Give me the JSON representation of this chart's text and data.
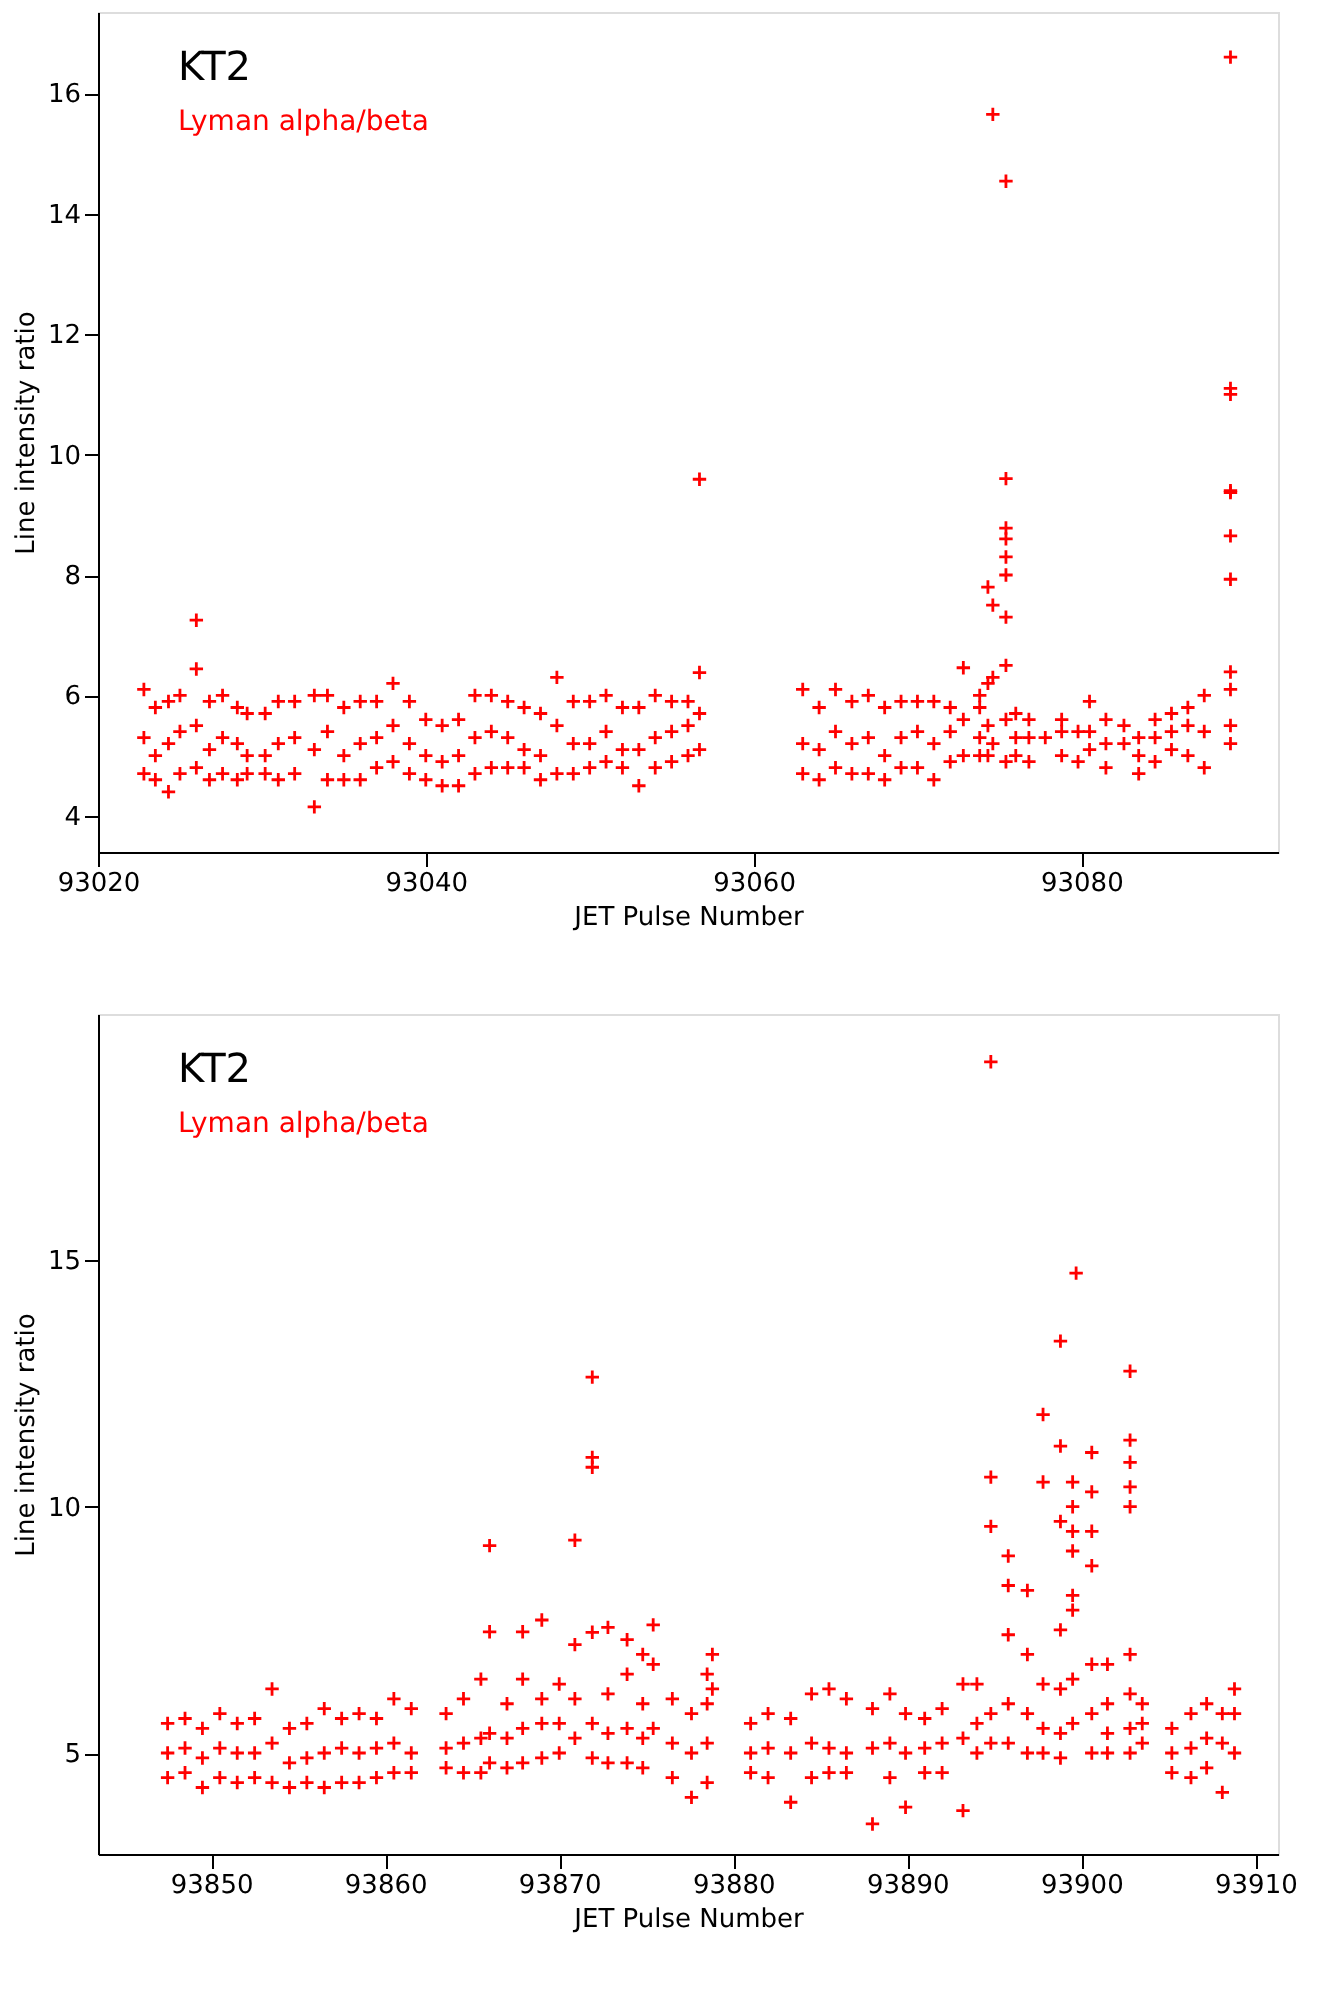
{
  "chart_data": [
    {
      "type": "scatter",
      "title": "KT2",
      "xlabel": "JET Pulse Number",
      "ylabel": "Line intensity ratio",
      "xlim": [
        93020,
        93092
      ],
      "ylim": [
        3.4,
        17.35
      ],
      "xticks": [
        93020,
        93040,
        93060,
        93080
      ],
      "yticks": [
        4,
        6,
        8,
        10,
        12,
        14,
        16
      ],
      "grid": false,
      "marker": "cross",
      "series": [
        {
          "name": "Lyman alpha/beta",
          "color": "#ff0000",
          "x": [
            93022.8,
            93022.8,
            93022.8,
            93023.5,
            93023.5,
            93023.5,
            93024.3,
            93024.3,
            93024.3,
            93025.0,
            93025.0,
            93025.0,
            93026.0,
            93026.0,
            93026.0,
            93026.0,
            93026.8,
            93026.8,
            93026.8,
            93027.6,
            93027.6,
            93027.6,
            93028.5,
            93028.5,
            93028.5,
            93029.1,
            93029.1,
            93029.1,
            93030.2,
            93030.2,
            93030.2,
            93031.0,
            93031.0,
            93031.0,
            93032.0,
            93032.0,
            93032.0,
            93033.2,
            93033.2,
            93033.2,
            93034.0,
            93034.0,
            93034.0,
            93035.0,
            93035.0,
            93035.0,
            93036.0,
            93036.0,
            93036.0,
            93037.0,
            93037.0,
            93037.0,
            93038.0,
            93038.0,
            93038.0,
            93039.0,
            93039.0,
            93039.0,
            93040.0,
            93040.0,
            93040.0,
            93041.0,
            93041.0,
            93041.0,
            93042.0,
            93042.0,
            93042.0,
            93043.0,
            93043.0,
            93043.0,
            93044.0,
            93044.0,
            93044.0,
            93045.0,
            93045.0,
            93045.0,
            93046.0,
            93046.0,
            93046.0,
            93047.0,
            93047.0,
            93047.0,
            93048.0,
            93048.0,
            93048.0,
            93049.0,
            93049.0,
            93049.0,
            93050.0,
            93050.0,
            93050.0,
            93051.0,
            93051.0,
            93051.0,
            93052.0,
            93052.0,
            93052.0,
            93053.0,
            93053.0,
            93053.0,
            93054.0,
            93054.0,
            93054.0,
            93055.0,
            93055.0,
            93055.0,
            93056.0,
            93056.0,
            93056.0,
            93056.7,
            93056.7,
            93056.7,
            93056.7,
            93063.0,
            93063.0,
            93063.0,
            93064.0,
            93064.0,
            93064.0,
            93065.0,
            93065.0,
            93065.0,
            93066.0,
            93066.0,
            93066.0,
            93067.0,
            93067.0,
            93067.0,
            93068.0,
            93068.0,
            93068.0,
            93069.0,
            93069.0,
            93069.0,
            93070.0,
            93070.0,
            93070.0,
            93071.0,
            93071.0,
            93071.0,
            93072.0,
            93072.0,
            93072.0,
            93072.8,
            93072.8,
            93072.8,
            93073.8,
            93073.8,
            93073.8,
            93073.8,
            93074.3,
            93074.3,
            93074.3,
            93074.3,
            93074.6,
            93074.6,
            93074.6,
            93074.6,
            93075.4,
            93075.4,
            93075.4,
            93075.4,
            93075.4,
            93075.4,
            93075.4,
            93075.4,
            93075.4,
            93075.4,
            93076.0,
            93076.0,
            93076.0,
            93076.8,
            93076.8,
            93076.8,
            93077.8,
            93078.8,
            93078.8,
            93078.8,
            93079.8,
            93079.8,
            93080.5,
            93080.5,
            93080.5,
            93081.5,
            93081.5,
            93081.5,
            93082.6,
            93082.6,
            93083.5,
            93083.5,
            93083.5,
            93084.5,
            93084.5,
            93084.5,
            93085.5,
            93085.5,
            93085.5,
            93086.5,
            93086.5,
            93086.5,
            93087.5,
            93087.5,
            93087.5,
            93089.1,
            93089.1,
            93089.1,
            93089.1,
            93089.1,
            93089.1,
            93089.1,
            93089.1,
            93089.1,
            93089.1,
            93089.1
          ],
          "values": [
            6.1,
            5.3,
            4.7,
            5.8,
            5.0,
            4.6,
            5.9,
            5.2,
            4.4,
            6.0,
            5.4,
            4.7,
            7.25,
            6.44,
            5.5,
            4.8,
            5.9,
            5.1,
            4.6,
            6.0,
            5.3,
            4.7,
            5.8,
            5.2,
            4.6,
            5.7,
            5.0,
            4.7,
            5.7,
            5.0,
            4.7,
            5.9,
            5.2,
            4.6,
            5.9,
            5.3,
            4.7,
            6.0,
            5.1,
            4.15,
            6.0,
            5.4,
            4.6,
            5.8,
            5.0,
            4.6,
            5.9,
            5.2,
            4.6,
            5.9,
            5.3,
            4.8,
            6.2,
            5.5,
            4.9,
            5.9,
            5.2,
            4.7,
            5.6,
            5.0,
            4.6,
            5.5,
            4.9,
            4.5,
            5.6,
            5.0,
            4.5,
            6.0,
            5.3,
            4.7,
            6.0,
            5.4,
            4.8,
            5.9,
            5.3,
            4.8,
            5.8,
            5.1,
            4.8,
            5.7,
            5.0,
            4.6,
            6.3,
            5.5,
            4.7,
            5.9,
            5.2,
            4.7,
            5.9,
            5.2,
            4.8,
            6.0,
            5.4,
            4.9,
            5.8,
            5.1,
            4.8,
            5.8,
            5.1,
            4.5,
            6.0,
            5.3,
            4.8,
            5.9,
            5.4,
            4.9,
            5.9,
            5.5,
            5.0,
            9.59,
            6.38,
            5.7,
            5.1,
            6.1,
            5.2,
            4.7,
            5.8,
            5.1,
            4.6,
            6.1,
            5.4,
            4.8,
            5.9,
            5.2,
            4.7,
            6.0,
            5.3,
            4.7,
            5.8,
            5.0,
            4.6,
            5.9,
            5.3,
            4.8,
            5.9,
            5.4,
            4.8,
            5.9,
            5.2,
            4.6,
            5.8,
            5.4,
            4.9,
            6.46,
            5.6,
            5.0,
            6.0,
            5.8,
            5.3,
            5.0,
            7.8,
            6.2,
            5.5,
            5.0,
            15.65,
            7.5,
            6.3,
            5.2,
            14.54,
            9.6,
            8.78,
            8.6,
            8.3,
            8.0,
            7.3,
            6.5,
            5.6,
            4.9,
            5.7,
            5.3,
            5.0,
            5.6,
            5.3,
            4.9,
            5.3,
            5.6,
            5.4,
            5.0,
            5.4,
            4.9,
            5.9,
            5.4,
            5.1,
            5.6,
            5.2,
            4.8,
            5.5,
            5.2,
            5.3,
            5.0,
            4.7,
            5.6,
            5.3,
            4.9,
            5.7,
            5.4,
            5.1,
            5.8,
            5.5,
            5.0,
            6.0,
            5.4,
            4.8,
            16.6,
            11.1,
            11.0,
            9.4,
            9.37,
            8.65,
            7.93,
            6.39,
            6.1,
            5.5,
            5.2
          ]
        }
      ]
    },
    {
      "type": "scatter",
      "title": "KT2",
      "xlabel": "JET Pulse Number",
      "ylabel": "Line intensity ratio",
      "xlim": [
        93843.5,
        93911.3
      ],
      "ylim": [
        2.95,
        20
      ],
      "xticks": [
        93850,
        93860,
        93870,
        93880,
        93890,
        93900,
        93910
      ],
      "yticks": [
        5,
        10,
        15
      ],
      "grid": false,
      "marker": "cross",
      "series": [
        {
          "name": "Lyman alpha/beta",
          "color": "#ff0000",
          "x": [
            93847.5,
            93847.5,
            93847.5,
            93848.5,
            93848.5,
            93848.5,
            93849.5,
            93849.5,
            93849.5,
            93850.5,
            93850.5,
            93850.5,
            93851.5,
            93851.5,
            93851.5,
            93852.5,
            93852.5,
            93852.5,
            93853.5,
            93853.5,
            93853.5,
            93854.5,
            93854.5,
            93854.5,
            93855.5,
            93855.5,
            93855.5,
            93856.5,
            93856.5,
            93856.5,
            93857.5,
            93857.5,
            93857.5,
            93858.5,
            93858.5,
            93858.5,
            93859.5,
            93859.5,
            93859.5,
            93860.5,
            93860.5,
            93860.5,
            93861.5,
            93861.5,
            93861.5,
            93863.5,
            93863.5,
            93863.5,
            93864.5,
            93864.5,
            93864.5,
            93865.5,
            93865.5,
            93865.5,
            93866.0,
            93866.0,
            93866.0,
            93866.0,
            93867.0,
            93867.0,
            93867.0,
            93867.9,
            93867.9,
            93867.9,
            93867.9,
            93869.0,
            93869.0,
            93869.0,
            93869.0,
            93870.0,
            93870.0,
            93870.0,
            93870.9,
            93870.9,
            93870.9,
            93870.9,
            93871.9,
            93871.9,
            93871.9,
            93871.9,
            93871.9,
            93871.9,
            93872.8,
            93872.8,
            93872.8,
            93872.8,
            93873.9,
            93873.9,
            93873.9,
            93873.9,
            93874.8,
            93874.8,
            93874.8,
            93874.8,
            93875.4,
            93875.4,
            93875.4,
            93876.5,
            93876.5,
            93876.5,
            93877.6,
            93877.6,
            93877.6,
            93878.5,
            93878.5,
            93878.5,
            93878.5,
            93878.8,
            93878.8,
            93881.0,
            93881.0,
            93881.0,
            93882.0,
            93882.0,
            93882.0,
            93883.3,
            93883.3,
            93883.3,
            93884.5,
            93884.5,
            93884.5,
            93885.5,
            93885.5,
            93885.5,
            93886.5,
            93886.5,
            93886.5,
            93888.0,
            93888.0,
            93888.0,
            93889.0,
            93889.0,
            93889.0,
            93889.9,
            93889.9,
            93889.9,
            93891.0,
            93891.0,
            93891.0,
            93892.0,
            93892.0,
            93892.0,
            93893.2,
            93893.2,
            93893.2,
            93894.0,
            93894.0,
            93894.0,
            93894.8,
            93894.8,
            93894.8,
            93894.8,
            93894.8,
            93895.8,
            93895.8,
            93895.8,
            93895.8,
            93895.8,
            93896.9,
            93896.9,
            93896.9,
            93896.9,
            93897.8,
            93897.8,
            93897.8,
            93897.8,
            93897.8,
            93898.8,
            93898.8,
            93898.8,
            93898.8,
            93898.8,
            93898.8,
            93898.8,
            93899.5,
            93899.5,
            93899.5,
            93899.5,
            93899.5,
            93899.5,
            93899.5,
            93899.5,
            93899.7,
            93900.6,
            93900.6,
            93900.6,
            93900.6,
            93900.6,
            93900.6,
            93900.6,
            93901.5,
            93901.5,
            93901.5,
            93901.5,
            93902.8,
            93902.8,
            93902.8,
            93902.8,
            93902.8,
            93902.8,
            93902.8,
            93902.8,
            93902.8,
            93903.5,
            93903.5,
            93903.5,
            93905.2,
            93905.2,
            93905.2,
            93906.3,
            93906.3,
            93906.3,
            93907.2,
            93907.2,
            93907.2,
            93908.1,
            93908.1,
            93908.1,
            93908.8,
            93908.8,
            93908.8
          ],
          "values": [
            5.6,
            5.0,
            4.5,
            5.7,
            5.1,
            4.6,
            5.5,
            4.9,
            4.3,
            5.8,
            5.1,
            4.5,
            5.6,
            5.0,
            4.4,
            5.7,
            5.0,
            4.5,
            6.3,
            5.2,
            4.4,
            5.5,
            4.8,
            4.3,
            5.6,
            4.9,
            4.4,
            5.9,
            5.0,
            4.3,
            5.7,
            5.1,
            4.4,
            5.8,
            5.0,
            4.4,
            5.7,
            5.1,
            4.5,
            6.1,
            5.2,
            4.6,
            5.9,
            5.0,
            4.6,
            5.8,
            5.1,
            4.7,
            6.1,
            5.2,
            4.6,
            6.5,
            5.3,
            4.6,
            9.21,
            7.46,
            5.4,
            4.8,
            6.0,
            5.3,
            4.7,
            7.46,
            6.5,
            5.5,
            4.8,
            7.7,
            6.1,
            5.6,
            4.9,
            6.4,
            5.6,
            5.0,
            9.32,
            7.2,
            6.1,
            5.3,
            12.63,
            11.0,
            10.8,
            7.45,
            5.6,
            4.9,
            7.55,
            6.2,
            5.4,
            4.8,
            7.3,
            6.6,
            5.5,
            4.8,
            7.0,
            6.0,
            5.3,
            4.7,
            7.6,
            6.8,
            5.5,
            6.1,
            5.2,
            4.5,
            5.8,
            5.0,
            4.1,
            6.6,
            6.0,
            5.2,
            4.4,
            7.0,
            6.3,
            5.6,
            5.0,
            4.6,
            5.8,
            5.1,
            4.5,
            5.7,
            5.0,
            4.0,
            6.2,
            5.2,
            4.5,
            6.3,
            5.1,
            4.6,
            6.1,
            5.0,
            4.6,
            5.9,
            5.1,
            3.56,
            6.2,
            5.2,
            4.5,
            5.8,
            5.0,
            3.9,
            5.7,
            5.1,
            4.6,
            5.9,
            5.2,
            4.6,
            6.4,
            5.3,
            3.83,
            6.4,
            5.6,
            5.0,
            19.03,
            10.6,
            9.6,
            5.8,
            5.2,
            9.0,
            8.4,
            7.4,
            6.0,
            5.2,
            8.3,
            7.0,
            5.8,
            5.0,
            11.87,
            10.5,
            6.4,
            5.5,
            5.0,
            13.36,
            11.23,
            9.7,
            7.5,
            6.3,
            5.4,
            4.9,
            10.5,
            10.0,
            9.5,
            9.1,
            8.2,
            7.9,
            6.5,
            5.6,
            14.74,
            11.1,
            10.3,
            9.5,
            8.8,
            6.8,
            5.8,
            5.0,
            6.8,
            6.0,
            5.4,
            5.0,
            12.75,
            11.35,
            10.9,
            10.4,
            10.0,
            7.0,
            6.2,
            5.5,
            5.0,
            6.0,
            5.6,
            5.2,
            5.5,
            5.0,
            4.6,
            5.8,
            5.1,
            4.5,
            6.0,
            5.3,
            4.7,
            5.8,
            5.2,
            4.2,
            6.3,
            5.8,
            5.0
          ]
        }
      ]
    }
  ]
}
